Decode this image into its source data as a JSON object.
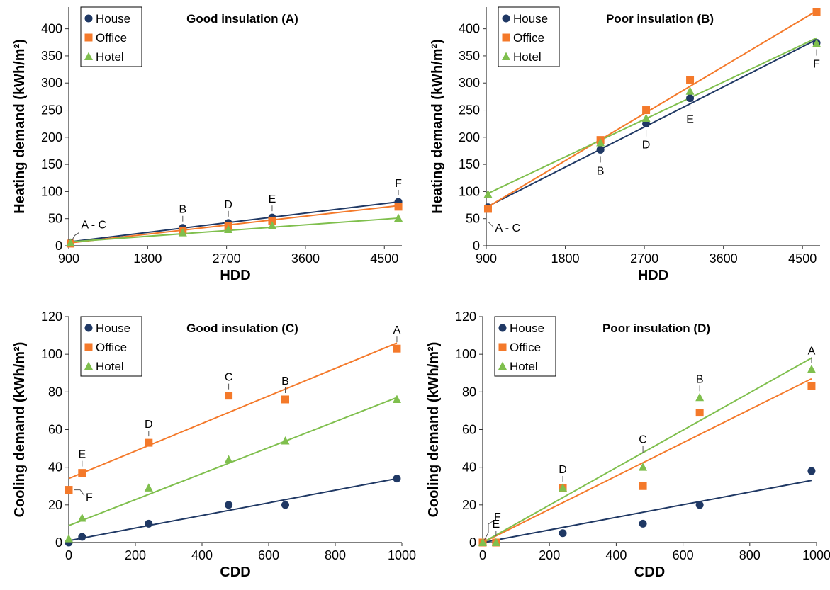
{
  "colors": {
    "House": "#1f3864",
    "Office": "#f4792a",
    "Hotel": "#7fbf4d"
  },
  "chart_data": [
    {
      "type": "scatter",
      "title": "Good insulation (A)",
      "xlabel": "HDD",
      "ylabel": "Heating demand (kWh/m²)",
      "xlim": [
        900,
        4700
      ],
      "ylim": [
        0,
        440
      ],
      "xticks": [
        "900",
        "1800",
        "2700",
        "3600",
        "4500"
      ],
      "yticks": [
        "0",
        "50",
        "100",
        "150",
        "200",
        "250",
        "300",
        "350",
        "400"
      ],
      "legend_position": "top-left",
      "series": [
        {
          "name": "House",
          "marker": "circle",
          "points": [
            [
              920,
              6
            ],
            [
              2200,
              33
            ],
            [
              2720,
              42
            ],
            [
              3220,
              52
            ],
            [
              4660,
              81
            ]
          ],
          "fit": [
            [
              900,
              7
            ],
            [
              4660,
              81
            ]
          ]
        },
        {
          "name": "Office",
          "marker": "square",
          "points": [
            [
              920,
              4
            ],
            [
              2200,
              28
            ],
            [
              2720,
              36
            ],
            [
              3220,
              46
            ],
            [
              4660,
              72
            ]
          ],
          "fit": [
            [
              900,
              5
            ],
            [
              4660,
              74
            ]
          ]
        },
        {
          "name": "Hotel",
          "marker": "triangle",
          "points": [
            [
              920,
              5
            ],
            [
              2200,
              24
            ],
            [
              2720,
              30
            ],
            [
              3220,
              37
            ],
            [
              4660,
              51
            ]
          ],
          "fit": [
            [
              900,
              7
            ],
            [
              4660,
              51
            ]
          ]
        }
      ],
      "annotations": [
        {
          "text": "A - C",
          "x": 920,
          "y": 6,
          "placement": "right-callout"
        },
        {
          "text": "B",
          "x": 2200,
          "y": 33,
          "placement": "above"
        },
        {
          "text": "D",
          "x": 2720,
          "y": 42,
          "placement": "above"
        },
        {
          "text": "E",
          "x": 3220,
          "y": 52,
          "placement": "above"
        },
        {
          "text": "F",
          "x": 4660,
          "y": 81,
          "placement": "above"
        }
      ]
    },
    {
      "type": "scatter",
      "title": "Poor insulation (B)",
      "xlabel": "HDD",
      "ylabel": "Heating demand (kWh/m²)",
      "xlim": [
        900,
        4700
      ],
      "ylim": [
        0,
        440
      ],
      "xticks": [
        "900",
        "1800",
        "2700",
        "3600",
        "4500"
      ],
      "yticks": [
        "0",
        "50",
        "100",
        "150",
        "200",
        "250",
        "300",
        "350",
        "400"
      ],
      "legend_position": "top-left",
      "series": [
        {
          "name": "House",
          "marker": "circle",
          "points": [
            [
              920,
              71
            ],
            [
              2200,
              177
            ],
            [
              2720,
              225
            ],
            [
              3220,
              272
            ],
            [
              4660,
              374
            ]
          ],
          "fit": [
            [
              900,
              71
            ],
            [
              4660,
              380
            ]
          ]
        },
        {
          "name": "Office",
          "marker": "square",
          "points": [
            [
              920,
              68
            ],
            [
              2200,
              195
            ],
            [
              2720,
              250
            ],
            [
              3220,
              306
            ],
            [
              4660,
              431
            ]
          ],
          "fit": [
            [
              900,
              70
            ],
            [
              4660,
              433
            ]
          ]
        },
        {
          "name": "Hotel",
          "marker": "triangle",
          "points": [
            [
              920,
              95
            ],
            [
              2200,
              190
            ],
            [
              2720,
              235
            ],
            [
              3220,
              285
            ],
            [
              4660,
              373
            ]
          ],
          "fit": [
            [
              900,
              95
            ],
            [
              4660,
              383
            ]
          ]
        }
      ],
      "annotations": [
        {
          "text": "A - C",
          "x": 920,
          "y": 68,
          "placement": "below-callout"
        },
        {
          "text": "B",
          "x": 2200,
          "y": 177,
          "placement": "below"
        },
        {
          "text": "D",
          "x": 2720,
          "y": 225,
          "placement": "below"
        },
        {
          "text": "E",
          "x": 3220,
          "y": 272,
          "placement": "below"
        },
        {
          "text": "F",
          "x": 4660,
          "y": 374,
          "placement": "below"
        }
      ]
    },
    {
      "type": "scatter",
      "title": "Good insulation (C)",
      "xlabel": "CDD",
      "ylabel": "Cooling demand (kWh/m²)",
      "xlim": [
        0,
        1000
      ],
      "ylim": [
        0,
        120
      ],
      "xticks": [
        "0",
        "200",
        "400",
        "600",
        "800",
        "1000"
      ],
      "yticks": [
        "0",
        "20",
        "40",
        "60",
        "80",
        "100",
        "120"
      ],
      "legend_position": "top-left",
      "series": [
        {
          "name": "House",
          "marker": "circle",
          "points": [
            [
              0,
              0
            ],
            [
              40,
              3
            ],
            [
              240,
              10
            ],
            [
              480,
              20
            ],
            [
              650,
              20
            ],
            [
              985,
              34
            ]
          ],
          "fit": [
            [
              0,
              1
            ],
            [
              985,
              34
            ]
          ]
        },
        {
          "name": "Office",
          "marker": "square",
          "points": [
            [
              0,
              28
            ],
            [
              40,
              37
            ],
            [
              240,
              53
            ],
            [
              480,
              78
            ],
            [
              650,
              76
            ],
            [
              985,
              103
            ]
          ],
          "fit": [
            [
              0,
              34
            ],
            [
              985,
              106
            ]
          ]
        },
        {
          "name": "Hotel",
          "marker": "triangle",
          "points": [
            [
              0,
              2
            ],
            [
              40,
              13
            ],
            [
              240,
              29
            ],
            [
              480,
              44
            ],
            [
              650,
              54
            ],
            [
              985,
              76
            ]
          ],
          "fit": [
            [
              0,
              9
            ],
            [
              985,
              77
            ]
          ]
        }
      ],
      "annotations": [
        {
          "text": "A",
          "x": 985,
          "y": 103,
          "placement": "above"
        },
        {
          "text": "B",
          "x": 650,
          "y": 76,
          "placement": "above"
        },
        {
          "text": "C",
          "x": 480,
          "y": 78,
          "placement": "above"
        },
        {
          "text": "D",
          "x": 240,
          "y": 53,
          "placement": "above"
        },
        {
          "text": "E",
          "x": 40,
          "y": 37,
          "placement": "above"
        },
        {
          "text": "F",
          "x": 0,
          "y": 28,
          "placement": "right-down-callout"
        }
      ]
    },
    {
      "type": "scatter",
      "title": "Poor insulation (D)",
      "xlabel": "CDD",
      "ylabel": "Cooling demand (kWh/m²)",
      "xlim": [
        0,
        1000
      ],
      "ylim": [
        0,
        120
      ],
      "xticks": [
        "0",
        "200",
        "400",
        "600",
        "800",
        "1000"
      ],
      "yticks": [
        "0",
        "20",
        "40",
        "60",
        "80",
        "100",
        "120"
      ],
      "legend_position": "top-left",
      "series": [
        {
          "name": "House",
          "marker": "circle",
          "points": [
            [
              0,
              0
            ],
            [
              40,
              0
            ],
            [
              240,
              5
            ],
            [
              480,
              10
            ],
            [
              650,
              20
            ],
            [
              985,
              38
            ]
          ],
          "fit": [
            [
              0,
              0
            ],
            [
              985,
              33
            ]
          ]
        },
        {
          "name": "Office",
          "marker": "square",
          "points": [
            [
              0,
              0
            ],
            [
              40,
              0
            ],
            [
              240,
              29
            ],
            [
              480,
              30
            ],
            [
              650,
              69
            ],
            [
              985,
              83
            ]
          ],
          "fit": [
            [
              0,
              0
            ],
            [
              985,
              87
            ]
          ]
        },
        {
          "name": "Hotel",
          "marker": "triangle",
          "points": [
            [
              0,
              0
            ],
            [
              40,
              0
            ],
            [
              240,
              29
            ],
            [
              480,
              40
            ],
            [
              650,
              77
            ],
            [
              985,
              92
            ]
          ],
          "fit": [
            [
              0,
              0
            ],
            [
              985,
              98
            ]
          ]
        }
      ],
      "annotations": [
        {
          "text": "A",
          "x": 985,
          "y": 92,
          "placement": "above"
        },
        {
          "text": "B",
          "x": 650,
          "y": 77,
          "placement": "above"
        },
        {
          "text": "C",
          "x": 480,
          "y": 40,
          "placement": "above-tall"
        },
        {
          "text": "D",
          "x": 240,
          "y": 29,
          "placement": "above"
        },
        {
          "text": "E",
          "x": 40,
          "y": 0,
          "placement": "above"
        },
        {
          "text": "F",
          "x": 0,
          "y": 0,
          "placement": "right-up-callout"
        }
      ]
    }
  ]
}
